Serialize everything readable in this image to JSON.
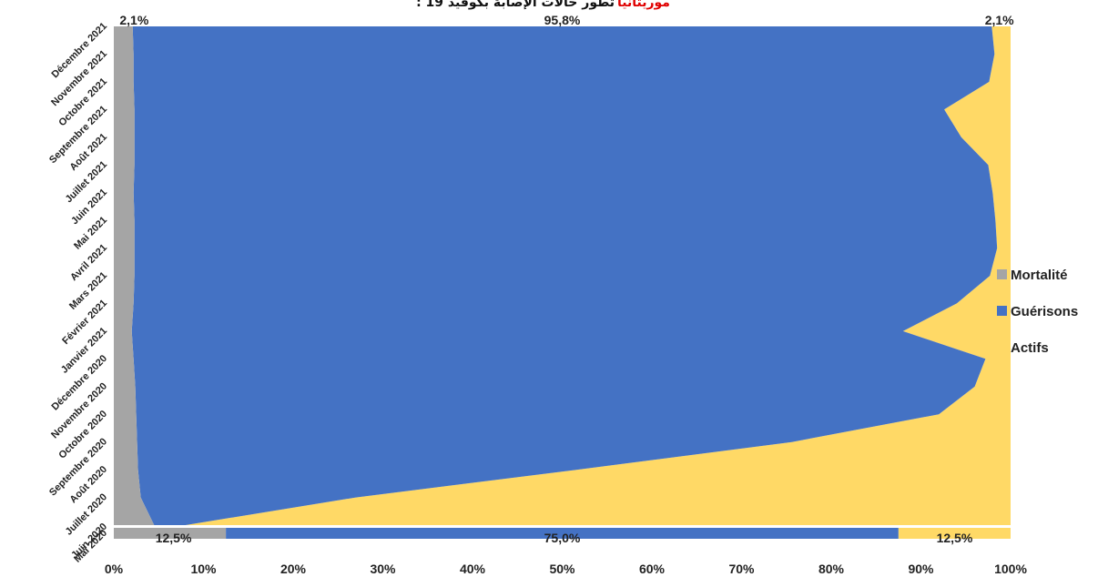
{
  "chart_data": {
    "type": "area",
    "orientation": "horizontal-stacked-100",
    "title_highlight": "موريتانيا",
    "title": ": تطور حالات الإصابة بكوفيد 19",
    "categories": [
      "Mai 2020",
      "Juin 2020",
      "Juillet 2020",
      "Août 2020",
      "Septembre 2020",
      "Octobre 2020",
      "Novembre 2020",
      "Décembre 2020",
      "Janvier 2021",
      "Février 2021",
      "Mars 2021",
      "Avril 2021",
      "Mai 2021",
      "Juin 2021",
      "Juillet 2021",
      "Août 2021",
      "Septembre 2021",
      "Octobre 2021",
      "Novembre 2021",
      "Décembre 2021"
    ],
    "x_ticks": [
      "0%",
      "10%",
      "20%",
      "30%",
      "40%",
      "50%",
      "60%",
      "70%",
      "80%",
      "90%",
      "100%"
    ],
    "xlim": [
      0,
      100
    ],
    "legend_position": "right",
    "series": [
      {
        "name": "Mortalité",
        "color": "#a5a5a5",
        "values": [
          12.5,
          4.5,
          3.0,
          2.7,
          2.6,
          2.5,
          2.4,
          2.2,
          2.0,
          2.2,
          2.3,
          2.3,
          2.3,
          2.2,
          2.3,
          2.3,
          2.3,
          2.2,
          2.2,
          2.1
        ]
      },
      {
        "name": "Guérisons",
        "color": "#4472c4",
        "values": [
          75.0,
          3.5,
          24.0,
          49.0,
          73.0,
          89.5,
          93.6,
          95.0,
          86.0,
          91.8,
          95.4,
          96.2,
          96.0,
          95.8,
          95.2,
          92.2,
          90.3,
          95.4,
          96.0,
          95.8
        ]
      },
      {
        "name": "Actifs",
        "color": "#ffd966",
        "values": [
          12.5,
          92.0,
          73.0,
          48.3,
          24.4,
          8.0,
          4.0,
          2.8,
          12.0,
          6.0,
          2.3,
          1.5,
          1.7,
          2.0,
          2.5,
          5.5,
          7.4,
          2.4,
          1.8,
          2.1
        ]
      }
    ],
    "data_labels": {
      "first": [
        "12,5%",
        "75,0%",
        "12,5%"
      ],
      "last": [
        "2,1%",
        "95,8%",
        "2,1%"
      ]
    }
  }
}
